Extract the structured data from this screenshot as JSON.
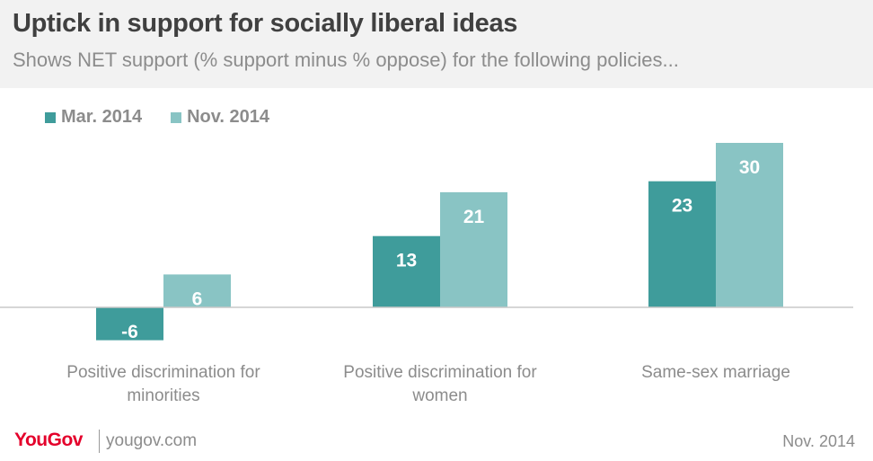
{
  "chart_data": {
    "type": "bar",
    "title": "Uptick in support for socially liberal ideas",
    "subtitle": "Shows NET support (% support minus % oppose) for the following policies...",
    "categories": [
      "Positive discrimination for minorities",
      "Positive discrimination for women",
      "Same-sex marriage"
    ],
    "category_lines": [
      [
        "Positive discrimination for",
        "minorities"
      ],
      [
        "Positive discrimination for",
        "women"
      ],
      [
        "Same-sex marriage"
      ]
    ],
    "series": [
      {
        "name": "Mar. 2014",
        "color": "#3f9c9b",
        "values": [
          -6,
          13,
          23
        ]
      },
      {
        "name": "Nov. 2014",
        "color": "#89c4c4",
        "values": [
          6,
          21,
          30
        ]
      }
    ],
    "ylim": [
      -6,
      30
    ],
    "data_labels": true,
    "grid": false,
    "legend_position": "top-left"
  },
  "footer": {
    "logo": "YouGov",
    "site": "yougov.com",
    "date": "Nov. 2014"
  }
}
